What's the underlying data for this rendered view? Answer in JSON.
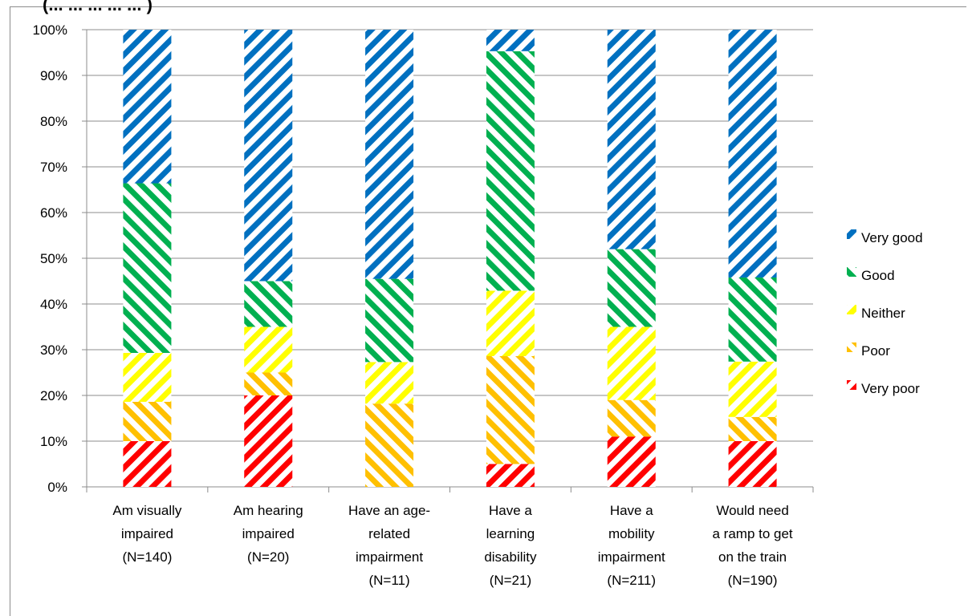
{
  "page_title_fragment": "(... ... ... ... ... )",
  "chart_data": {
    "type": "bar",
    "stacked": true,
    "percent": true,
    "categories": [
      "Am visually impaired (N=140)",
      "Am hearing impaired (N=20)",
      "Have an age-related impairment (N=11)",
      "Have a learning disability (N=21)",
      "Have a mobility impairment (N=211)",
      "Would need a ramp to get on the train (N=190)"
    ],
    "category_lines": [
      [
        "Am visually",
        "impaired",
        "(N=140)"
      ],
      [
        "Am hearing",
        "impaired",
        "(N=20)"
      ],
      [
        "Have an age-",
        "related",
        "impairment",
        "(N=11)"
      ],
      [
        "Have a",
        "learning",
        "disability",
        "(N=21)"
      ],
      [
        "Have a",
        "mobility",
        "impairment",
        "(N=211)"
      ],
      [
        "Would need",
        "a ramp to get",
        "on the train",
        "(N=190)"
      ]
    ],
    "series": [
      {
        "name": "Very poor",
        "color": "#ff0000",
        "values": [
          10,
          20,
          0,
          5,
          11,
          10
        ]
      },
      {
        "name": "Poor",
        "color": "#ffc000",
        "values": [
          8.6,
          5,
          18.2,
          23.6,
          8,
          5.3
        ]
      },
      {
        "name": "Neither",
        "color": "#ffff00",
        "values": [
          10.7,
          10,
          9.1,
          14.3,
          16,
          12.1
        ]
      },
      {
        "name": "Good",
        "color": "#00b050",
        "values": [
          37.1,
          10,
          18.2,
          52.4,
          17,
          18.4
        ]
      },
      {
        "name": "Very good",
        "color": "#0070c0",
        "values": [
          33.6,
          55,
          54.5,
          4.7,
          48,
          54.2
        ]
      }
    ],
    "y_ticks": [
      "0%",
      "10%",
      "20%",
      "30%",
      "40%",
      "50%",
      "60%",
      "70%",
      "80%",
      "90%",
      "100%"
    ],
    "ylim": [
      0,
      100
    ],
    "grid": true,
    "legend_position": "right"
  }
}
